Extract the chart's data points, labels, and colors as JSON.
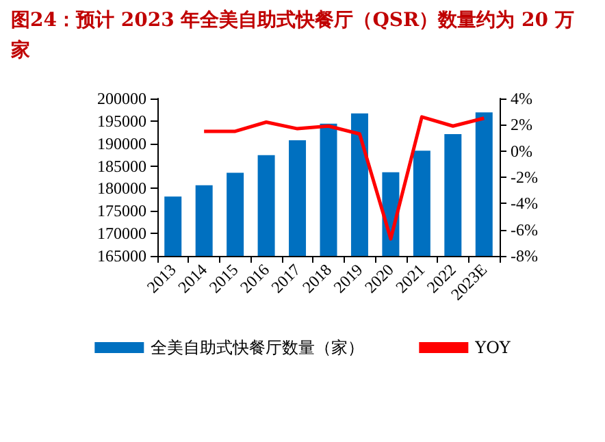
{
  "chart_data": {
    "type": "bar",
    "title": "图24：预计 2023 年全美自助式快餐厅（QSR）数量约为 20 万家",
    "categories": [
      "2013",
      "2014",
      "2015",
      "2016",
      "2017",
      "2018",
      "2019",
      "2020",
      "2021",
      "2022",
      "2023E"
    ],
    "series": [
      {
        "name": "全美自助式快餐厅数量（家）",
        "color": "#0070c0",
        "values": [
          178200,
          180700,
          183500,
          187400,
          190700,
          194400,
          196700,
          183600,
          188400,
          192100,
          196900
        ]
      },
      {
        "name": "YOY",
        "type": "line",
        "axis": "y2",
        "color": "#ff0000",
        "values": [
          null,
          1.5,
          1.5,
          2.2,
          1.7,
          1.9,
          1.3,
          -6.7,
          2.6,
          1.9,
          2.5
        ]
      }
    ],
    "ylim": [
      165000,
      200000
    ],
    "yticks": [
      165000,
      170000,
      175000,
      180000,
      185000,
      190000,
      195000,
      200000
    ],
    "y2lim": [
      -8,
      4
    ],
    "y2ticks": [
      {
        "value": -8,
        "label": "-8%"
      },
      {
        "value": -6,
        "label": "-6%"
      },
      {
        "value": -4,
        "label": "-4%"
      },
      {
        "value": -2,
        "label": "-2%"
      },
      {
        "value": 0,
        "label": "0%"
      },
      {
        "value": 2,
        "label": "2%"
      },
      {
        "value": 4,
        "label": "4%"
      }
    ],
    "legend": "bottom"
  }
}
